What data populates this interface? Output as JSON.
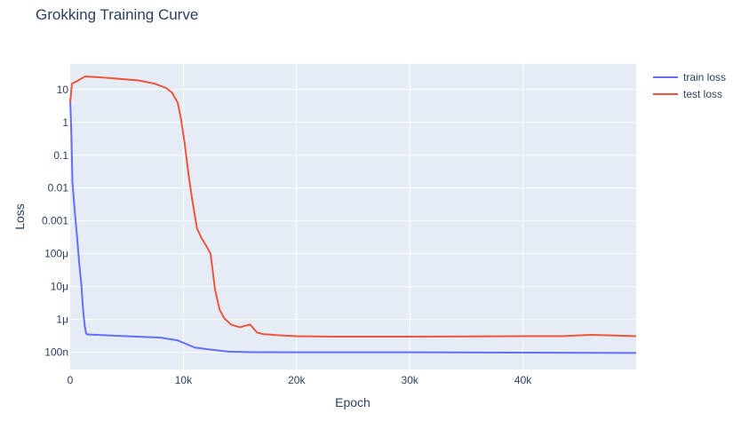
{
  "chart_data": {
    "type": "line",
    "title": "Grokking Training Curve",
    "xlabel": "Epoch",
    "ylabel": "Loss",
    "xscale": "linear",
    "yscale": "log",
    "xlim": [
      0,
      50000
    ],
    "ylim": [
      3e-08,
      60
    ],
    "grid": true,
    "legend_position": "top-right",
    "plot_bgcolor": "#e5ecf6",
    "x_ticks": [
      {
        "value": 0,
        "label": "0"
      },
      {
        "value": 10000,
        "label": "10k"
      },
      {
        "value": 20000,
        "label": "20k"
      },
      {
        "value": 30000,
        "label": "30k"
      },
      {
        "value": 40000,
        "label": "40k"
      }
    ],
    "y_ticks": [
      {
        "value": 10,
        "label": "10"
      },
      {
        "value": 1,
        "label": "1"
      },
      {
        "value": 0.1,
        "label": "0.1"
      },
      {
        "value": 0.01,
        "label": "0.01"
      },
      {
        "value": 0.001,
        "label": "0.001"
      },
      {
        "value": 0.0001,
        "label": "100μ"
      },
      {
        "value": 1e-05,
        "label": "10μ"
      },
      {
        "value": 1e-06,
        "label": "1μ"
      },
      {
        "value": 1e-07,
        "label": "100n"
      }
    ],
    "series": [
      {
        "name": "train loss",
        "color": "#636efa",
        "points": [
          [
            0,
            5
          ],
          [
            100,
            0.5
          ],
          [
            200,
            0.015
          ],
          [
            400,
            0.002
          ],
          [
            600,
            0.00035
          ],
          [
            800,
            5e-05
          ],
          [
            1000,
            1e-05
          ],
          [
            1100,
            3e-06
          ],
          [
            1200,
            1.2e-06
          ],
          [
            1300,
            6e-07
          ],
          [
            1400,
            3.8e-07
          ],
          [
            1500,
            3.5e-07
          ],
          [
            4000,
            3.2e-07
          ],
          [
            8000,
            2.8e-07
          ],
          [
            9500,
            2.3e-07
          ],
          [
            11000,
            1.4e-07
          ],
          [
            12500,
            1.2e-07
          ],
          [
            14000,
            1.05e-07
          ],
          [
            16000,
            1.01e-07
          ],
          [
            20000,
            1e-07
          ],
          [
            30000,
            1e-07
          ],
          [
            40000,
            9.8e-08
          ],
          [
            50000,
            9.6e-08
          ]
        ]
      },
      {
        "name": "test loss",
        "color": "#ef553b",
        "points": [
          [
            0,
            4
          ],
          [
            150,
            15
          ],
          [
            600,
            18
          ],
          [
            1300,
            25
          ],
          [
            3000,
            23
          ],
          [
            6000,
            19
          ],
          [
            7500,
            15
          ],
          [
            8500,
            11
          ],
          [
            9000,
            8
          ],
          [
            9500,
            4
          ],
          [
            9800,
            1.2
          ],
          [
            10100,
            0.25
          ],
          [
            10500,
            0.02
          ],
          [
            10800,
            0.004
          ],
          [
            11200,
            0.0006
          ],
          [
            11600,
            0.0003
          ],
          [
            12000,
            0.00018
          ],
          [
            12400,
            0.0001
          ],
          [
            12800,
            8e-06
          ],
          [
            13200,
            2e-06
          ],
          [
            13600,
            1.1e-06
          ],
          [
            14200,
            7e-07
          ],
          [
            15000,
            5.8e-07
          ],
          [
            15500,
            6.5e-07
          ],
          [
            15900,
            7e-07
          ],
          [
            16500,
            4e-07
          ],
          [
            17000,
            3.6e-07
          ],
          [
            18500,
            3.3e-07
          ],
          [
            20000,
            3.1e-07
          ],
          [
            23000,
            3e-07
          ],
          [
            30000,
            3e-07
          ],
          [
            40000,
            3.1e-07
          ],
          [
            43500,
            3.1e-07
          ],
          [
            46000,
            3.4e-07
          ],
          [
            47500,
            3.3e-07
          ],
          [
            50000,
            3.1e-07
          ]
        ]
      }
    ]
  }
}
